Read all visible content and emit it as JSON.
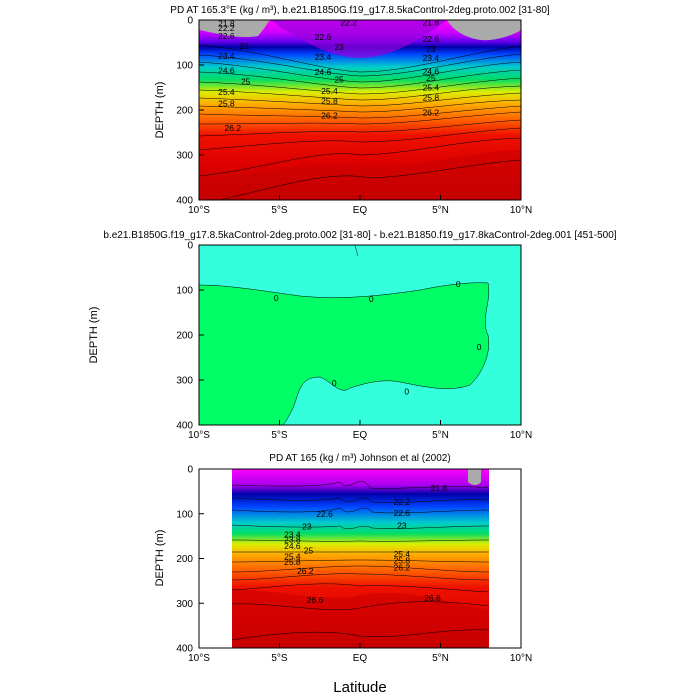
{
  "chart_data": [
    {
      "type": "contour",
      "title": "PD AT 165.3°E (kg / m³), b.e21.B1850G.f19_g17.8.5kaControl-2deg.proto.002 [31-80]",
      "xlabel": "",
      "ylabel": "DEPTH (m)",
      "xlim": [
        -10,
        10
      ],
      "ylim": [
        400,
        0
      ],
      "x_ticks": [
        -10,
        -5,
        0,
        5,
        10
      ],
      "x_tick_labels": [
        "10°S",
        "5°S",
        "EQ",
        "5°N",
        "10°N"
      ],
      "y_ticks": [
        0,
        100,
        200,
        300,
        400
      ],
      "contour_labels": [
        {
          "text": "21.8",
          "x": -8.3,
          "y": 8
        },
        {
          "text": "22.2",
          "x": -0.7,
          "y": 5
        },
        {
          "text": "21.8",
          "x": 4.4,
          "y": 6
        },
        {
          "text": "22.2",
          "x": -8.3,
          "y": 18
        },
        {
          "text": "22.6",
          "x": -8.3,
          "y": 36
        },
        {
          "text": "22.6",
          "x": -2.3,
          "y": 38
        },
        {
          "text": "22.6",
          "x": 4.4,
          "y": 42
        },
        {
          "text": "23",
          "x": -7.2,
          "y": 58
        },
        {
          "text": "23",
          "x": -1.3,
          "y": 60
        },
        {
          "text": "23",
          "x": 4.4,
          "y": 64
        },
        {
          "text": "23.4",
          "x": -8.3,
          "y": 80
        },
        {
          "text": "23.4",
          "x": -2.3,
          "y": 82
        },
        {
          "text": "23.4",
          "x": 4.4,
          "y": 84
        },
        {
          "text": "24.6",
          "x": -8.3,
          "y": 112
        },
        {
          "text": "24.6",
          "x": -2.3,
          "y": 116
        },
        {
          "text": "24.6",
          "x": 4.4,
          "y": 114
        },
        {
          "text": "25",
          "x": -7.1,
          "y": 137
        },
        {
          "text": "25",
          "x": -1.3,
          "y": 132
        },
        {
          "text": "25",
          "x": 4.4,
          "y": 129
        },
        {
          "text": "25.4",
          "x": -8.3,
          "y": 160
        },
        {
          "text": "25.4",
          "x": -1.9,
          "y": 158
        },
        {
          "text": "25.4",
          "x": 4.4,
          "y": 150
        },
        {
          "text": "25.8",
          "x": -8.3,
          "y": 185
        },
        {
          "text": "25.8",
          "x": -1.9,
          "y": 180
        },
        {
          "text": "25.8",
          "x": 4.4,
          "y": 172
        },
        {
          "text": "26.2",
          "x": -7.9,
          "y": 240
        },
        {
          "text": "26.2",
          "x": -1.9,
          "y": 212
        },
        {
          "text": "26.2",
          "x": 4.4,
          "y": 206
        }
      ]
    },
    {
      "type": "contour",
      "title": "b.e21.B1850G.f19_g17.8.5kaControl-2deg.proto.002 [31-80] - b.e21.B1850.f19_g17.8kaControl-2deg.001 [451-500]",
      "xlabel": "",
      "ylabel": "DEPTH (m)",
      "xlim": [
        -10,
        10
      ],
      "ylim": [
        400,
        0
      ],
      "x_ticks": [
        -10,
        -5,
        0,
        5,
        10
      ],
      "x_tick_labels": [
        "10°S",
        "5°S",
        "EQ",
        "5°N",
        "10°N"
      ],
      "y_ticks": [
        0,
        100,
        200,
        300,
        400
      ],
      "levels": [
        "0"
      ],
      "contour_labels": [
        {
          "text": "0",
          "x": -5.2,
          "y": 118
        },
        {
          "text": "0",
          "x": 0.7,
          "y": 120
        },
        {
          "text": "0",
          "x": 6.1,
          "y": 87
        },
        {
          "text": "0",
          "x": 7.4,
          "y": 227
        },
        {
          "text": "0",
          "x": -1.6,
          "y": 307
        },
        {
          "text": "0",
          "x": 2.9,
          "y": 325
        }
      ]
    },
    {
      "type": "contour",
      "title": "PD AT 165 (kg / m³) Johnson et al (2002)",
      "xlabel": "Latitude",
      "ylabel": "DEPTH (m)",
      "xlim": [
        -10,
        10
      ],
      "ylim": [
        400,
        0
      ],
      "x_ticks": [
        -10,
        -5,
        0,
        5,
        10
      ],
      "x_tick_labels": [
        "10°S",
        "5°S",
        "EQ",
        "5°N",
        "10°N"
      ],
      "y_ticks": [
        0,
        100,
        200,
        300,
        400
      ],
      "data_lat_range": [
        -8,
        8
      ],
      "contour_labels": [
        {
          "text": "21.8",
          "x": 4.9,
          "y": 43
        },
        {
          "text": "22.2",
          "x": 2.6,
          "y": 74
        },
        {
          "text": "22.6",
          "x": -2.2,
          "y": 100
        },
        {
          "text": "22.6",
          "x": 2.6,
          "y": 98
        },
        {
          "text": "23",
          "x": -3.3,
          "y": 128
        },
        {
          "text": "23",
          "x": 2.6,
          "y": 126
        },
        {
          "text": "23.4",
          "x": -4.2,
          "y": 146
        },
        {
          "text": "23.8",
          "x": -4.2,
          "y": 157
        },
        {
          "text": "24.6",
          "x": -4.2,
          "y": 172
        },
        {
          "text": "25",
          "x": -3.2,
          "y": 182
        },
        {
          "text": "25.4",
          "x": -4.2,
          "y": 195
        },
        {
          "text": "25.8",
          "x": -4.2,
          "y": 208
        },
        {
          "text": "26.2",
          "x": -3.4,
          "y": 228
        },
        {
          "text": "26.2",
          "x": 2.6,
          "y": 220
        },
        {
          "text": "25.4",
          "x": 2.6,
          "y": 190
        },
        {
          "text": "25.8",
          "x": 2.6,
          "y": 204
        },
        {
          "text": "26.6",
          "x": -2.8,
          "y": 293
        },
        {
          "text": "26.6",
          "x": 4.5,
          "y": 288
        }
      ]
    }
  ],
  "colors": {
    "top": "#ff00ff",
    "upper": "#9900ee",
    "deep_blue": "#0000aa",
    "mid_blue": "#0044ff",
    "cyan": "#00cccc",
    "green": "#00dd66",
    "yellow": "#ddee00",
    "orange": "#ff8800",
    "red": "#ee1100",
    "dark_red": "#bb0000",
    "land": "#aaaaaa",
    "diff_positive": "#00ff66",
    "diff_negative": "#33ffdd"
  }
}
